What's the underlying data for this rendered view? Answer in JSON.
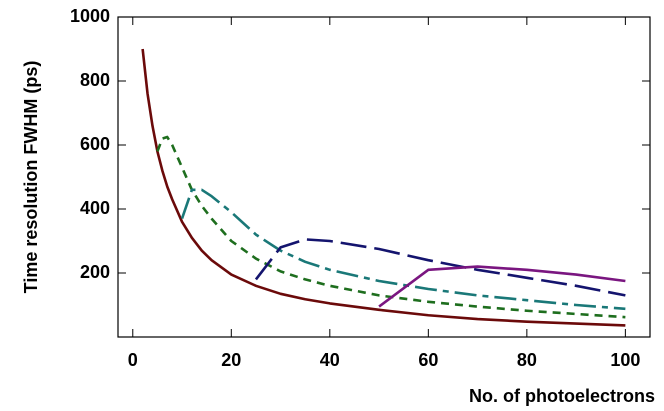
{
  "chart_data": {
    "type": "line",
    "xlabel": "No. of photoelectrons",
    "ylabel": "Time resolution FWHM (ps)",
    "x": [
      2,
      3,
      4,
      5,
      6,
      7,
      8,
      10,
      12,
      14,
      16,
      20,
      25,
      30,
      35,
      40,
      50,
      60,
      70,
      80,
      90,
      100
    ],
    "series": [
      {
        "color": "#6b0a0a",
        "dash": "none",
        "values": [
          900,
          760,
          660,
          580,
          520,
          470,
          430,
          360,
          310,
          270,
          240,
          195,
          160,
          135,
          118,
          105,
          85,
          68,
          56,
          48,
          42,
          36
        ]
      },
      {
        "color": "#1e6e1e",
        "dash": "8,6",
        "values": [
          null,
          null,
          null,
          580,
          620,
          625,
          600,
          530,
          460,
          410,
          370,
          300,
          245,
          205,
          180,
          160,
          130,
          110,
          95,
          82,
          72,
          62
        ]
      },
      {
        "color": "#1a7878",
        "dash": "22,6,6,6",
        "values": [
          null,
          null,
          null,
          null,
          null,
          null,
          null,
          370,
          460,
          460,
          440,
          390,
          320,
          270,
          235,
          210,
          175,
          150,
          130,
          115,
          100,
          88
        ]
      },
      {
        "color": "#14146e",
        "dash": "26,8",
        "values": [
          null,
          null,
          null,
          null,
          null,
          null,
          null,
          null,
          null,
          null,
          null,
          null,
          180,
          280,
          305,
          300,
          275,
          240,
          210,
          185,
          160,
          130
        ]
      },
      {
        "color": "#7a1680",
        "dash": "none",
        "values": [
          null,
          null,
          null,
          null,
          null,
          null,
          null,
          null,
          null,
          null,
          null,
          null,
          null,
          null,
          null,
          null,
          95,
          210,
          220,
          210,
          195,
          175
        ]
      }
    ],
    "xlim": [
      -3,
      105
    ],
    "xticks": [
      0,
      20,
      40,
      60,
      80,
      100
    ],
    "ylim": [
      0,
      1000
    ],
    "yticks": [
      200,
      400,
      600,
      800,
      1000
    ]
  }
}
